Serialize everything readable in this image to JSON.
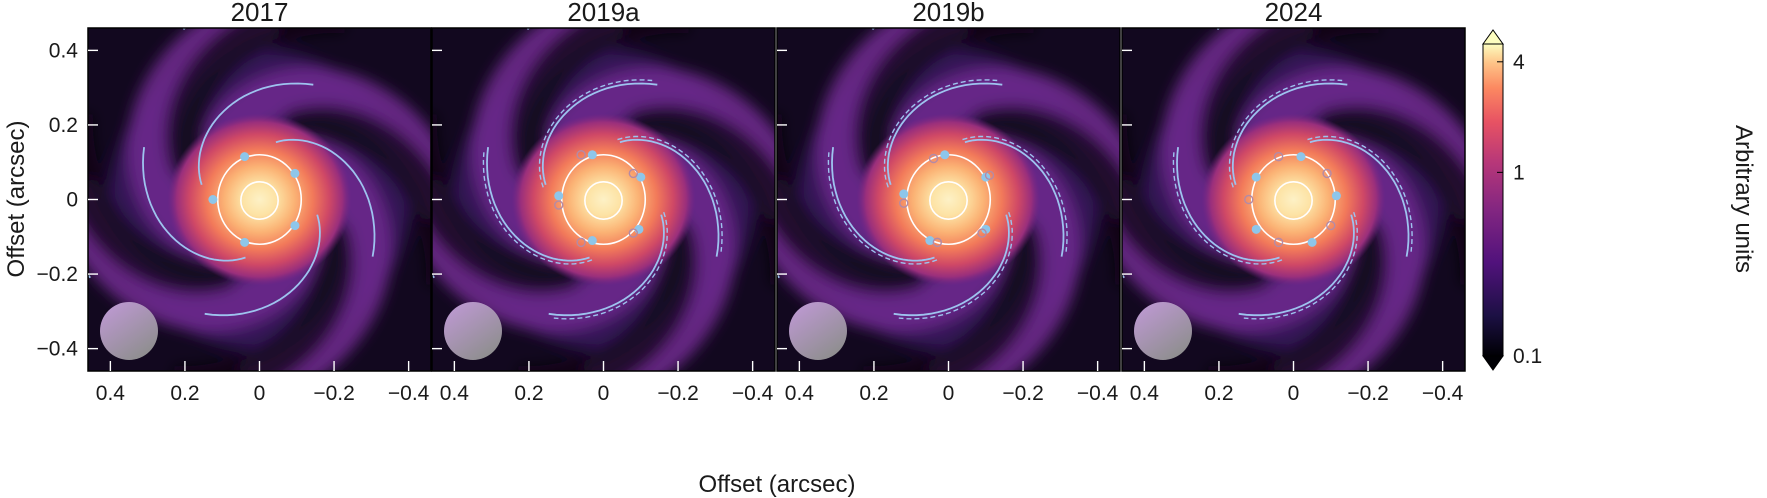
{
  "figure": {
    "xlabel": "Offset (arcsec)",
    "ylabel": "Offset (arcsec)",
    "colorbar_label": "Arbitrary units"
  },
  "chart_data": [
    {
      "type": "heatmap",
      "title": "2017",
      "xlabel": "Offset (arcsec)",
      "ylabel": "Offset (arcsec)",
      "xlim": [
        0.46,
        -0.46
      ],
      "ylim": [
        -0.46,
        0.46
      ],
      "xticks": [
        0.4,
        0.2,
        0,
        -0.2,
        -0.4
      ],
      "xtick_labels": [
        "0.4",
        "0.2",
        "0",
        "−0.2",
        "−0.4"
      ],
      "yticks": [
        0.4,
        0.2,
        0,
        -0.2,
        -0.4
      ],
      "ytick_labels": [
        "0.4",
        "0.2",
        "0",
        "−0.2",
        "−0.4"
      ],
      "spiral_arms": 4,
      "spiral_model": "solid",
      "contour_levels": [
        "inner",
        "outer"
      ],
      "spots_filled": [
        [
          0.04,
          0.115
        ],
        [
          -0.095,
          0.07
        ],
        [
          0.125,
          0.0
        ],
        [
          -0.095,
          -0.07
        ],
        [
          0.04,
          -0.115
        ]
      ],
      "spots_hollow": [],
      "beam": "circle bottom-left"
    },
    {
      "type": "heatmap",
      "title": "2019a",
      "xlabel": "Offset (arcsec)",
      "xlim": [
        0.46,
        -0.46
      ],
      "ylim": [
        -0.46,
        0.46
      ],
      "xticks": [
        0.4,
        0.2,
        0,
        -0.2,
        -0.4
      ],
      "xtick_labels": [
        "0.4",
        "0.2",
        "0",
        "−0.2",
        "−0.4"
      ],
      "spiral_arms": 4,
      "spiral_model": "solid+dashed",
      "contour_levels": [
        "inner",
        "outer"
      ],
      "spots_filled": [
        [
          0.03,
          0.12
        ],
        [
          -0.1,
          0.06
        ],
        [
          0.12,
          0.01
        ],
        [
          -0.095,
          -0.08
        ],
        [
          0.03,
          -0.11
        ]
      ],
      "spots_hollow": [
        [
          0.06,
          0.12
        ],
        [
          -0.08,
          0.07
        ],
        [
          0.12,
          -0.015
        ],
        [
          -0.08,
          -0.09
        ],
        [
          0.06,
          -0.115
        ]
      ],
      "beam": "circle bottom-left"
    },
    {
      "type": "heatmap",
      "title": "2019b",
      "xlabel": "Offset (arcsec)",
      "xlim": [
        0.46,
        -0.46
      ],
      "ylim": [
        -0.46,
        0.46
      ],
      "xticks": [
        0.4,
        0.2,
        0,
        -0.2,
        -0.4
      ],
      "xtick_labels": [
        "0.4",
        "0.2",
        "0",
        "−0.2",
        "−0.4"
      ],
      "spiral_arms": 4,
      "spiral_model": "solid+dashed",
      "contour_levels": [
        "inner",
        "outer"
      ],
      "spots_filled": [
        [
          0.01,
          0.12
        ],
        [
          -0.1,
          0.06
        ],
        [
          0.12,
          0.015
        ],
        [
          -0.1,
          -0.08
        ],
        [
          0.05,
          -0.11
        ]
      ],
      "spots_hollow": [
        [
          0.04,
          0.11
        ],
        [
          -0.11,
          0.065
        ],
        [
          0.12,
          -0.01
        ],
        [
          -0.09,
          -0.09
        ],
        [
          0.03,
          -0.115
        ]
      ],
      "beam": "circle bottom-left"
    },
    {
      "type": "heatmap",
      "title": "2024",
      "xlabel": "Offset (arcsec)",
      "xlim": [
        0.46,
        -0.46
      ],
      "ylim": [
        -0.46,
        0.46
      ],
      "xticks": [
        0.4,
        0.2,
        0,
        -0.2,
        -0.4
      ],
      "xtick_labels": [
        "0.4",
        "0.2",
        "0",
        "−0.2",
        "−0.4"
      ],
      "spiral_arms": 4,
      "spiral_model": "solid+dashed",
      "contour_levels": [
        "inner",
        "outer"
      ],
      "spots_filled": [
        [
          -0.02,
          0.115
        ],
        [
          0.1,
          0.06
        ],
        [
          -0.115,
          0.01
        ],
        [
          0.1,
          -0.08
        ],
        [
          -0.05,
          -0.115
        ]
      ],
      "spots_hollow": [
        [
          0.04,
          0.115
        ],
        [
          -0.09,
          0.07
        ],
        [
          0.12,
          0.0
        ],
        [
          -0.1,
          -0.07
        ],
        [
          0.04,
          -0.115
        ]
      ],
      "beam": "circle bottom-left"
    }
  ],
  "colorbar": {
    "scale": "log",
    "min": 0.1,
    "max": 5,
    "extend": "both",
    "ticks": [
      4,
      1,
      0.1
    ],
    "tick_labels": [
      "4",
      "1",
      "0.1"
    ],
    "label": "Arbitrary units"
  },
  "colors": {
    "spiral": "#9ec3ef",
    "spot": "#8ec6ea",
    "contour": "#ffffff",
    "background": "#ffffff"
  }
}
